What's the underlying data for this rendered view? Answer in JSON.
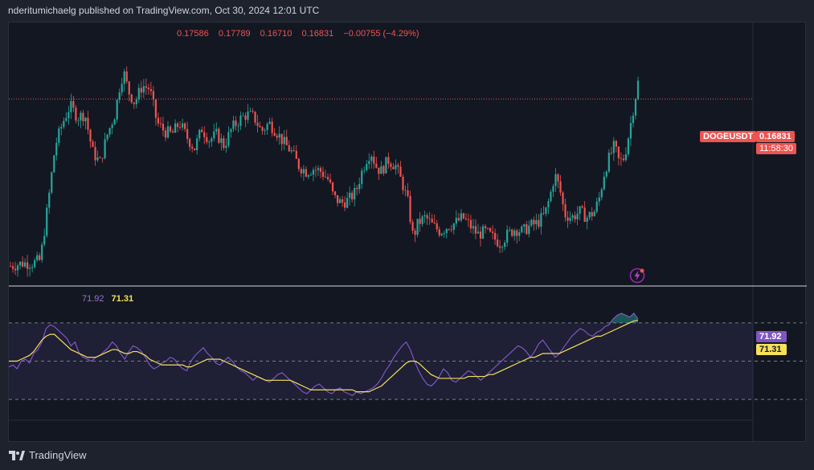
{
  "header": {
    "published_by": "nderitumichaelg published on TradingView.com, Oct 30, 2024 12:01 UTC"
  },
  "ohlc": {
    "open": "0.17586",
    "high": "0.17789",
    "low": "0.16710",
    "close": "0.16831",
    "change": "−0.00755 (−4.29%)"
  },
  "price_tag": {
    "symbol": "DOGEUSDT",
    "price": "0.16831",
    "countdown": "11:58:30"
  },
  "rsi": {
    "value": "71.92",
    "ma_value": "71.31"
  },
  "footer": {
    "brand": "TradingView"
  },
  "colors": {
    "up": "#26a69a",
    "down": "#ef5350",
    "rsi": "#7e57c2",
    "rsi_ma": "#f5e15a",
    "bg": "#131722"
  },
  "chart_data": [
    {
      "type": "candlestick",
      "title": "DOGEUSDT",
      "xlabel": "",
      "ylabel": "",
      "ylim": [
        0.103,
        0.19
      ],
      "last_price": 0.16831,
      "close_path": [
        [
          0,
          0.11
        ],
        [
          10,
          0.111
        ],
        [
          18,
          0.111
        ],
        [
          24,
          0.112
        ],
        [
          30,
          0.131
        ],
        [
          36,
          0.152
        ],
        [
          42,
          0.16
        ],
        [
          48,
          0.166
        ],
        [
          54,
          0.162
        ],
        [
          60,
          0.163
        ],
        [
          66,
          0.15
        ],
        [
          72,
          0.146
        ],
        [
          78,
          0.156
        ],
        [
          84,
          0.163
        ],
        [
          88,
          0.173
        ],
        [
          91,
          0.178
        ],
        [
          95,
          0.171
        ],
        [
          100,
          0.167
        ],
        [
          106,
          0.173
        ],
        [
          112,
          0.172
        ],
        [
          118,
          0.16
        ],
        [
          124,
          0.157
        ],
        [
          130,
          0.156
        ],
        [
          136,
          0.16
        ],
        [
          142,
          0.155
        ],
        [
          148,
          0.151
        ],
        [
          154,
          0.158
        ],
        [
          160,
          0.154
        ],
        [
          166,
          0.156
        ],
        [
          172,
          0.152
        ],
        [
          178,
          0.158
        ],
        [
          184,
          0.161
        ],
        [
          190,
          0.163
        ],
        [
          196,
          0.162
        ],
        [
          202,
          0.157
        ],
        [
          208,
          0.16
        ],
        [
          214,
          0.157
        ],
        [
          220,
          0.153
        ],
        [
          226,
          0.15
        ],
        [
          232,
          0.145
        ],
        [
          238,
          0.143
        ],
        [
          244,
          0.144
        ],
        [
          250,
          0.143
        ],
        [
          256,
          0.14
        ],
        [
          260,
          0.134
        ],
        [
          266,
          0.132
        ],
        [
          272,
          0.133
        ],
        [
          278,
          0.136
        ],
        [
          282,
          0.142
        ],
        [
          286,
          0.147
        ],
        [
          290,
          0.15
        ],
        [
          294,
          0.145
        ],
        [
          298,
          0.143
        ],
        [
          304,
          0.147
        ],
        [
          310,
          0.145
        ],
        [
          316,
          0.138
        ],
        [
          320,
          0.132
        ],
        [
          324,
          0.12
        ],
        [
          328,
          0.125
        ],
        [
          334,
          0.127
        ],
        [
          340,
          0.124
        ],
        [
          346,
          0.122
        ],
        [
          352,
          0.124
        ],
        [
          358,
          0.125
        ],
        [
          364,
          0.127
        ],
        [
          370,
          0.124
        ],
        [
          376,
          0.121
        ],
        [
          382,
          0.122
        ],
        [
          388,
          0.12
        ],
        [
          394,
          0.118
        ],
        [
          400,
          0.121
        ],
        [
          406,
          0.123
        ],
        [
          412,
          0.122
        ],
        [
          418,
          0.124
        ],
        [
          424,
          0.125
        ],
        [
          430,
          0.128
        ],
        [
          434,
          0.134
        ],
        [
          438,
          0.142
        ],
        [
          442,
          0.137
        ],
        [
          446,
          0.128
        ],
        [
          452,
          0.127
        ],
        [
          458,
          0.129
        ],
        [
          464,
          0.127
        ],
        [
          470,
          0.129
        ],
        [
          474,
          0.134
        ],
        [
          478,
          0.143
        ],
        [
          482,
          0.148
        ],
        [
          486,
          0.152
        ],
        [
          490,
          0.146
        ],
        [
          494,
          0.148
        ],
        [
          498,
          0.157
        ],
        [
          502,
          0.167
        ],
        [
          505,
          0.174
        ]
      ]
    },
    {
      "type": "line",
      "title": "RSI",
      "series": [
        {
          "name": "RSI",
          "values": [
            47,
            48,
            46,
            50,
            51,
            49,
            54,
            56,
            60,
            67,
            69,
            68,
            66,
            64,
            62,
            58,
            60,
            54,
            52,
            51,
            50,
            52,
            53,
            55,
            57,
            60,
            58,
            54,
            51,
            55,
            58,
            57,
            55,
            52,
            48,
            46,
            47,
            49,
            50,
            52,
            51,
            48,
            46,
            45,
            50,
            53,
            55,
            57,
            54,
            52,
            49,
            48,
            50,
            52,
            50,
            47,
            45,
            44,
            42,
            40,
            42,
            41,
            40,
            39,
            41,
            43,
            44,
            42,
            40,
            38,
            36,
            34,
            33,
            35,
            37,
            38,
            36,
            34,
            33,
            35,
            36,
            34,
            33,
            32,
            34,
            33,
            34,
            35,
            36,
            38,
            41,
            45,
            48,
            52,
            55,
            58,
            60,
            56,
            50,
            45,
            41,
            38,
            37,
            39,
            42,
            46,
            44,
            40,
            39,
            41,
            43,
            45,
            44,
            42,
            40,
            42,
            44,
            46,
            48,
            50,
            52,
            54,
            56,
            58,
            57,
            55,
            52,
            55,
            59,
            61,
            58,
            55,
            52,
            54,
            57,
            60,
            63,
            65,
            67,
            66,
            64,
            63,
            65,
            66,
            68,
            69,
            72,
            74,
            75,
            74,
            73,
            75,
            72
          ]
        },
        {
          "name": "RSI-based MA",
          "values": [
            50,
            50,
            50,
            51,
            52,
            53,
            55,
            58,
            61,
            63,
            64,
            64,
            62,
            60,
            58,
            56,
            55,
            54,
            53,
            52,
            52,
            52,
            53,
            54,
            55,
            56,
            56,
            55,
            54,
            54,
            55,
            55,
            54,
            53,
            51,
            50,
            49,
            48,
            48,
            48,
            48,
            48,
            48,
            47,
            47,
            48,
            49,
            50,
            51,
            51,
            51,
            51,
            50,
            49,
            48,
            47,
            46,
            45,
            44,
            43,
            42,
            41,
            40,
            40,
            40,
            40,
            40,
            40,
            40,
            39,
            38,
            37,
            36,
            35,
            35,
            35,
            35,
            35,
            35,
            35,
            35,
            35,
            35,
            35,
            34,
            34,
            34,
            34,
            35,
            36,
            37,
            39,
            41,
            43,
            45,
            47,
            49,
            50,
            50,
            49,
            47,
            45,
            43,
            42,
            41,
            41,
            41,
            41,
            41,
            41,
            41,
            42,
            42,
            42,
            42,
            42,
            43,
            43,
            44,
            45,
            46,
            47,
            48,
            49,
            50,
            51,
            52,
            52,
            53,
            54,
            54,
            54,
            54,
            54,
            55,
            56,
            57,
            58,
            59,
            60,
            61,
            62,
            63,
            63,
            64,
            65,
            66,
            67,
            68,
            69,
            70,
            71,
            71.31
          ]
        }
      ],
      "ylim": [
        20,
        80
      ],
      "levels": [
        70,
        50,
        30
      ]
    }
  ]
}
